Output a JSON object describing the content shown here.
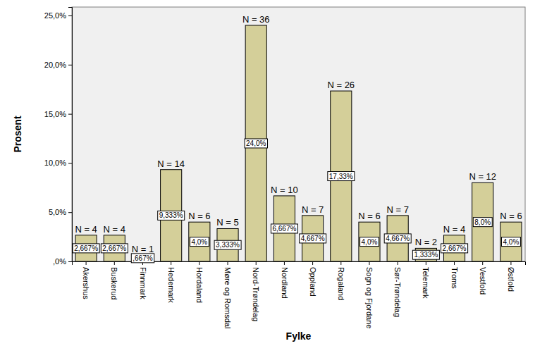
{
  "chart_data": {
    "type": "bar",
    "x_label": "Fylke",
    "y_label": "Prosent",
    "categories": [
      "Akershus",
      "Buskerud",
      "Finnmark",
      "Hedemark",
      "Hordaland",
      "Møre og Romsdal",
      "Nord-Trøndelag",
      "Nordland",
      "Oppland",
      "Rogaland",
      "Sogn og Fjordane",
      "Sør-Trøndelag",
      "Telemark",
      "Troms",
      "Vestfold",
      "Østfold"
    ],
    "values": [
      2.667,
      2.667,
      0.667,
      9.333,
      4.0,
      3.333,
      24.0,
      6.667,
      4.667,
      17.33,
      4.0,
      4.667,
      1.333,
      2.667,
      8.0,
      4.0
    ],
    "value_labels": [
      "2,667%",
      "2,667%",
      ",667%",
      "9,333%",
      "4,0%",
      "3,333%",
      "24,0%",
      "6,667%",
      "4,667%",
      "17,33%",
      "4,0%",
      "4,667%",
      "1,333%",
      "2,667%",
      "8,0%",
      "4,0%"
    ],
    "count_labels": [
      "N = 4",
      "N = 4",
      "N = 1",
      "N = 14",
      "N = 6",
      "N = 5",
      "N = 36",
      "N = 10",
      "N = 7",
      "N = 26",
      "N = 6",
      "N = 7",
      "N = 2",
      "N = 4",
      "N = 12",
      "N = 6"
    ],
    "color": "#d4cf99",
    "ylim": [
      0,
      25.86
    ],
    "yticks": [
      {
        "value": 0,
        "label": ",0%"
      },
      {
        "value": 5,
        "label": "5,0%"
      },
      {
        "value": 10,
        "label": "10,0%"
      },
      {
        "value": 15,
        "label": "15,0%"
      },
      {
        "value": 20,
        "label": "20,0%"
      },
      {
        "value": 25,
        "label": "25,0%"
      }
    ],
    "data_labels": true
  }
}
